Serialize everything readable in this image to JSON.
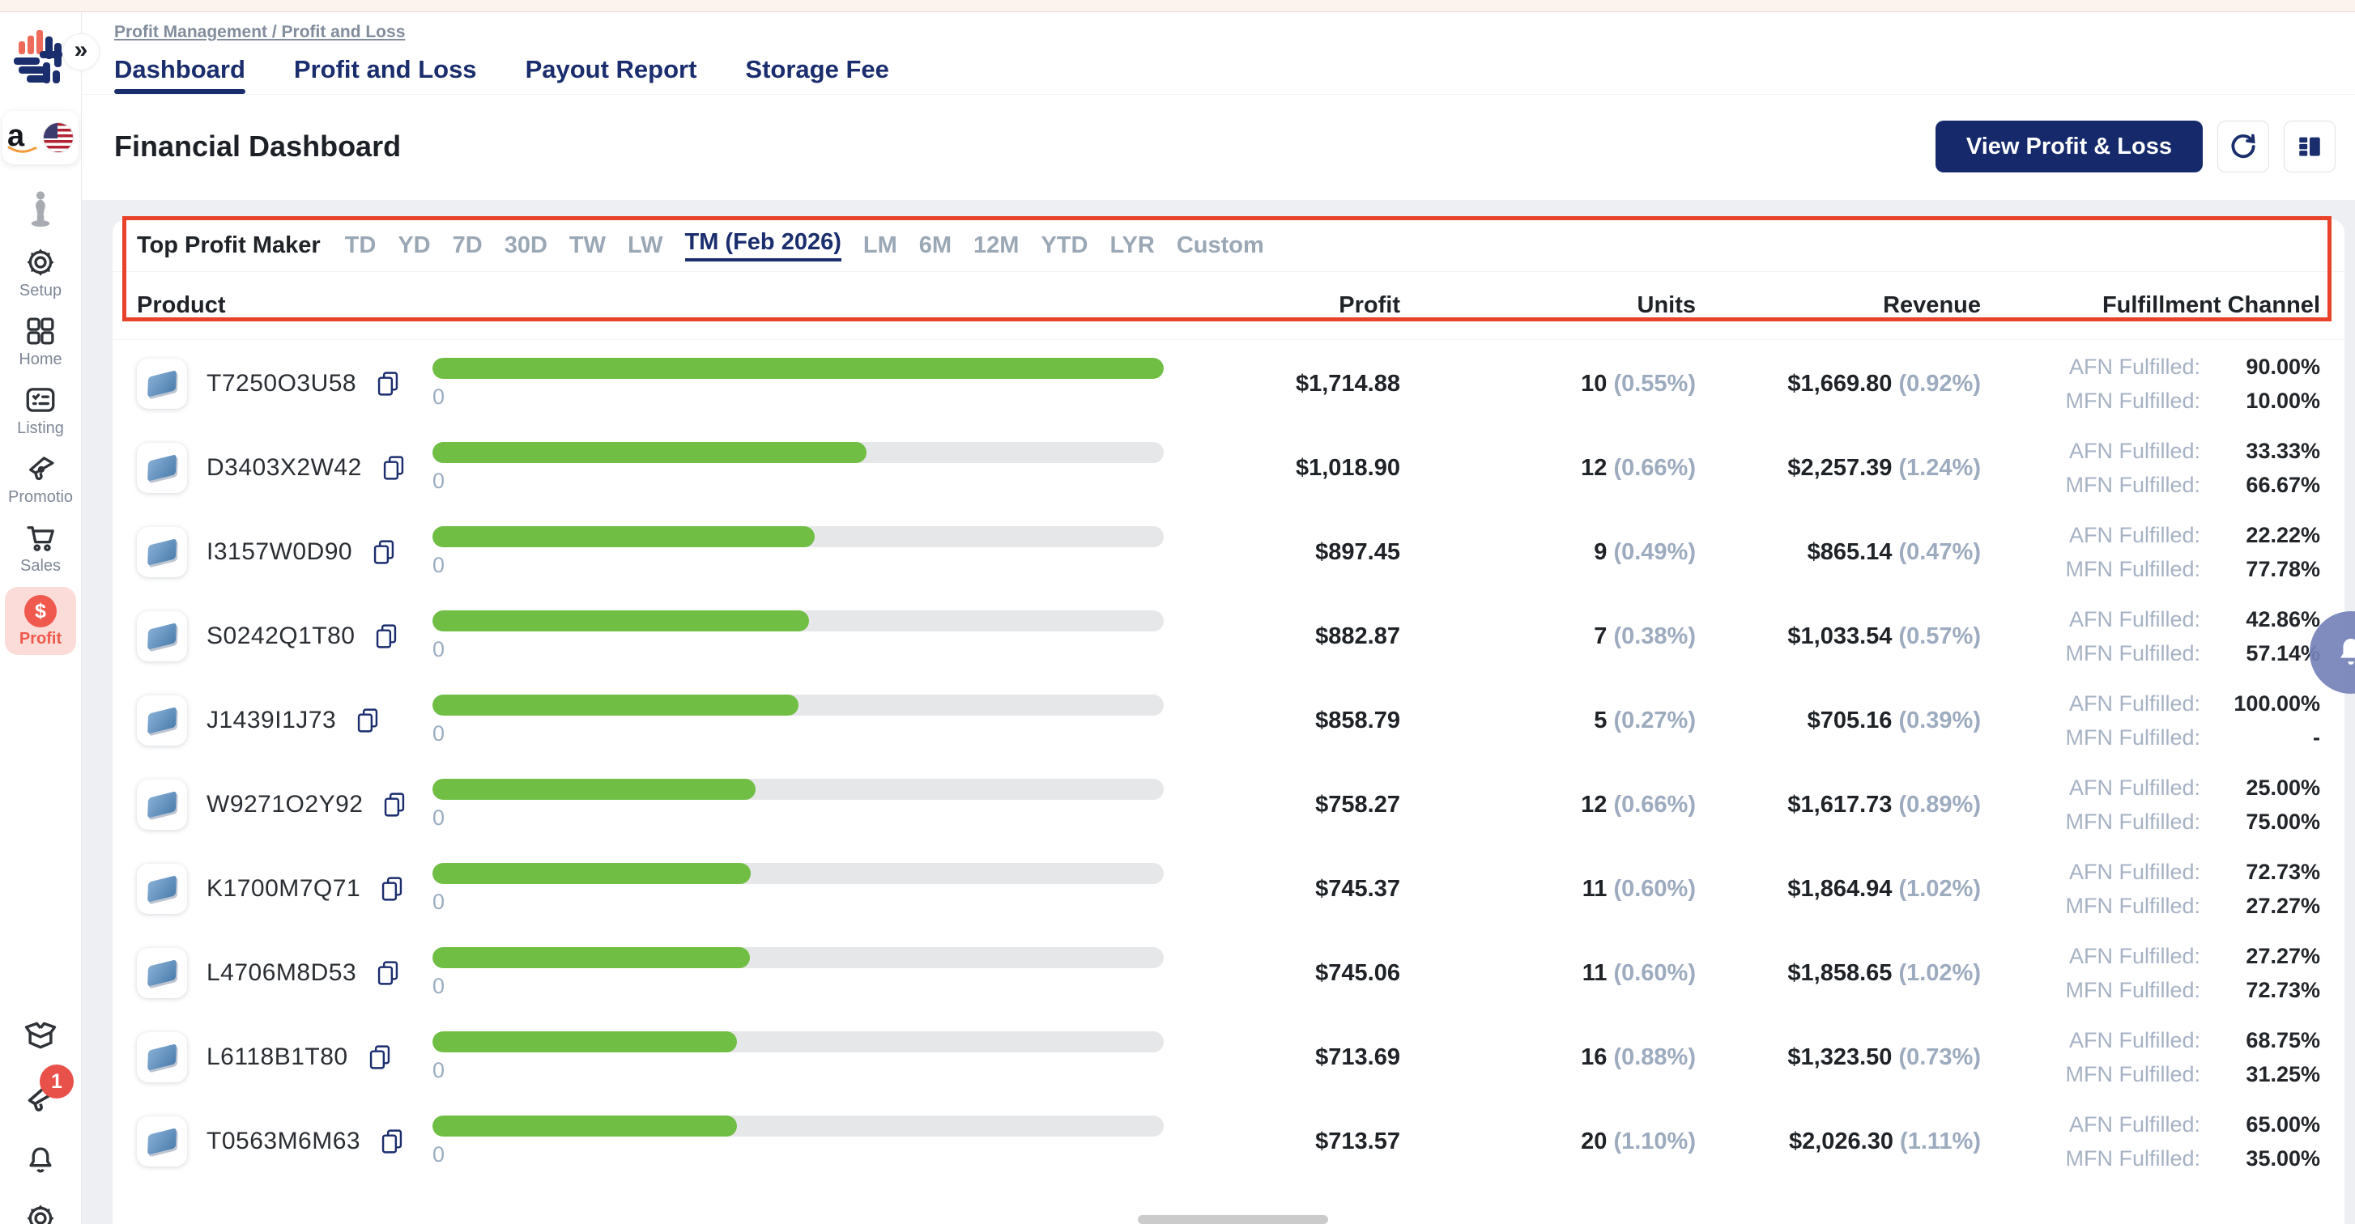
{
  "topbar": {
    "breadcrumb": "Profit Management / Profit and Loss"
  },
  "nav": {
    "tabs": [
      {
        "label": "Dashboard",
        "active": true
      },
      {
        "label": "Profit and Loss",
        "active": false
      },
      {
        "label": "Payout Report",
        "active": false
      },
      {
        "label": "Storage Fee",
        "active": false
      }
    ]
  },
  "header": {
    "title": "Financial Dashboard",
    "view_button": "View Profit & Loss"
  },
  "sidebar": {
    "items": [
      {
        "label": "Setup"
      },
      {
        "label": "Home"
      },
      {
        "label": "Listing"
      },
      {
        "label": "Promotio"
      },
      {
        "label": "Sales"
      },
      {
        "label": "Profit",
        "active": true
      }
    ],
    "bottom_badge": "1",
    "collapse_glyph": "»",
    "amazon_letter": "a",
    "profit_symbol": "$"
  },
  "filters": {
    "label": "Top Profit Maker",
    "active": "TM (Feb 2026)",
    "tabs": [
      "TD",
      "YD",
      "7D",
      "30D",
      "TW",
      "LW",
      "TM (Feb 2026)",
      "LM",
      "6M",
      "12M",
      "YTD",
      "LYR",
      "Custom"
    ]
  },
  "table": {
    "columns": {
      "product": "Product",
      "profit": "Profit",
      "units": "Units",
      "revenue": "Revenue",
      "fulfillment": "Fulfillment Channel"
    },
    "bar_label": "0",
    "afn_label": "AFN Fulfilled:",
    "mfn_label": "MFN Fulfilled:",
    "rows": [
      {
        "product": "T7250O3U58",
        "bar_pct": 100,
        "profit": "$1,714.88",
        "units": "10",
        "units_pct": "(0.55%)",
        "revenue": "$1,669.80",
        "revenue_pct": "(0.92%)",
        "afn": "90.00%",
        "mfn": "10.00%"
      },
      {
        "product": "D3403X2W42",
        "bar_pct": 59.4,
        "profit": "$1,018.90",
        "units": "12",
        "units_pct": "(0.66%)",
        "revenue": "$2,257.39",
        "revenue_pct": "(1.24%)",
        "afn": "33.33%",
        "mfn": "66.67%"
      },
      {
        "product": "I3157W0D90",
        "bar_pct": 52.3,
        "profit": "$897.45",
        "units": "9",
        "units_pct": "(0.49%)",
        "revenue": "$865.14",
        "revenue_pct": "(0.47%)",
        "afn": "22.22%",
        "mfn": "77.78%"
      },
      {
        "product": "S0242Q1T80",
        "bar_pct": 51.5,
        "profit": "$882.87",
        "units": "7",
        "units_pct": "(0.38%)",
        "revenue": "$1,033.54",
        "revenue_pct": "(0.57%)",
        "afn": "42.86%",
        "mfn": "57.14%"
      },
      {
        "product": "J1439I1J73",
        "bar_pct": 50.1,
        "profit": "$858.79",
        "units": "5",
        "units_pct": "(0.27%)",
        "revenue": "$705.16",
        "revenue_pct": "(0.39%)",
        "afn": "100.00%",
        "mfn": "-"
      },
      {
        "product": "W9271O2Y92",
        "bar_pct": 44.2,
        "profit": "$758.27",
        "units": "12",
        "units_pct": "(0.66%)",
        "revenue": "$1,617.73",
        "revenue_pct": "(0.89%)",
        "afn": "25.00%",
        "mfn": "75.00%"
      },
      {
        "product": "K1700M7Q71",
        "bar_pct": 43.5,
        "profit": "$745.37",
        "units": "11",
        "units_pct": "(0.60%)",
        "revenue": "$1,864.94",
        "revenue_pct": "(1.02%)",
        "afn": "72.73%",
        "mfn": "27.27%"
      },
      {
        "product": "L4706M8D53",
        "bar_pct": 43.4,
        "profit": "$745.06",
        "units": "11",
        "units_pct": "(0.60%)",
        "revenue": "$1,858.65",
        "revenue_pct": "(1.02%)",
        "afn": "27.27%",
        "mfn": "72.73%"
      },
      {
        "product": "L6118B1T80",
        "bar_pct": 41.6,
        "profit": "$713.69",
        "units": "16",
        "units_pct": "(0.88%)",
        "revenue": "$1,323.50",
        "revenue_pct": "(0.73%)",
        "afn": "68.75%",
        "mfn": "31.25%"
      },
      {
        "product": "T0563M6M63",
        "bar_pct": 41.6,
        "profit": "$713.57",
        "units": "20",
        "units_pct": "(1.10%)",
        "revenue": "$2,026.30",
        "revenue_pct": "(1.11%)",
        "afn": "65.00%",
        "mfn": "35.00%"
      }
    ]
  },
  "colors": {
    "accent_navy": "#1a2d6d",
    "bar_green": "#70bf44",
    "highlight_red": "#e8432a",
    "profit_coral": "#f0594d"
  }
}
